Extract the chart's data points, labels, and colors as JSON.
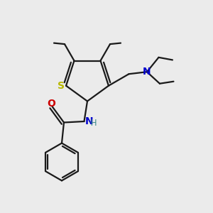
{
  "background_color": "#ebebeb",
  "bond_color": "#1a1a1a",
  "S_color": "#b8b800",
  "N_color": "#0000cc",
  "O_color": "#cc0000",
  "C_color": "#1a1a1a",
  "figsize": [
    3.0,
    3.0
  ],
  "dpi": 100,
  "xlim": [
    0,
    10
  ],
  "ylim": [
    0,
    10
  ]
}
